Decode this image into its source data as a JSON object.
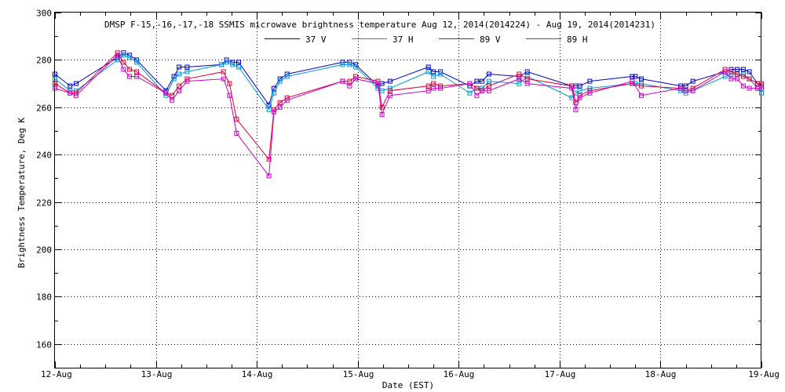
{
  "chart_data": {
    "type": "line",
    "title": "DMSP F-15,-16,-17,-18 SSMIS microwave brightness temperature Aug 12, 2014(2014224) - Aug 19, 2014(2014231)",
    "xlabel": "Date (EST)",
    "ylabel": "Brightness Temperature, Deg K",
    "xlim": [
      0,
      7
    ],
    "ylim": [
      150,
      300
    ],
    "x_ticks": [
      {
        "value": 0,
        "label": "12-Aug"
      },
      {
        "value": 1,
        "label": "13-Aug"
      },
      {
        "value": 2,
        "label": "14-Aug"
      },
      {
        "value": 3,
        "label": "15-Aug"
      },
      {
        "value": 4,
        "label": "16-Aug"
      },
      {
        "value": 5,
        "label": "17-Aug"
      },
      {
        "value": 6,
        "label": "18-Aug"
      },
      {
        "value": 7,
        "label": "19-Aug"
      }
    ],
    "y_ticks": [
      160,
      180,
      200,
      220,
      240,
      260,
      280,
      300
    ],
    "grid": true,
    "legend_position": "top",
    "series": [
      {
        "name": "37 V",
        "color": "#0000cc",
        "x": [
          0.0,
          0.15,
          0.21,
          0.62,
          0.68,
          0.74,
          0.81,
          1.1,
          1.18,
          1.23,
          1.31,
          1.65,
          1.7,
          1.76,
          1.82,
          2.12,
          2.17,
          2.23,
          2.3,
          2.85,
          2.92,
          2.98,
          3.2,
          3.24,
          3.32,
          3.7,
          3.75,
          3.82,
          4.11,
          4.18,
          4.23,
          4.3,
          4.6,
          4.68,
          5.12,
          5.16,
          5.2,
          5.3,
          5.72,
          5.75,
          5.81,
          6.2,
          6.25,
          6.32,
          6.64,
          6.7,
          6.76,
          6.82,
          6.88,
          6.96,
          7.0
        ],
        "values": [
          274,
          269,
          270,
          281,
          283,
          282,
          280,
          267,
          273,
          277,
          277,
          278,
          280,
          279,
          279,
          261,
          268,
          272,
          274,
          279,
          279,
          278,
          269,
          270,
          271,
          277,
          275,
          275,
          269,
          271,
          271,
          274,
          273,
          275,
          269,
          269,
          269,
          271,
          273,
          273,
          272,
          269,
          269,
          271,
          275,
          276,
          276,
          276,
          275,
          270,
          269
        ]
      },
      {
        "name": "37 H",
        "color": "#0099dd",
        "x": [
          0.0,
          0.15,
          0.21,
          0.62,
          0.68,
          0.74,
          0.81,
          1.1,
          1.18,
          1.23,
          1.31,
          1.65,
          1.7,
          1.76,
          1.82,
          2.12,
          2.17,
          2.23,
          2.3,
          2.85,
          2.92,
          2.98,
          3.2,
          3.24,
          3.32,
          3.7,
          3.75,
          3.82,
          4.11,
          4.18,
          4.23,
          4.3,
          4.6,
          4.68,
          5.12,
          5.16,
          5.2,
          5.3,
          5.72,
          5.75,
          5.81,
          6.2,
          6.25,
          6.32,
          6.64,
          6.7,
          6.76,
          6.82,
          6.88,
          6.96,
          7.0
        ],
        "values": [
          272,
          267,
          267,
          280,
          282,
          281,
          279,
          265,
          272,
          274,
          275,
          278,
          279,
          278,
          277,
          259,
          266,
          271,
          273,
          278,
          278,
          277,
          268,
          267,
          268,
          275,
          273,
          274,
          266,
          268,
          268,
          271,
          270,
          273,
          264,
          266,
          267,
          268,
          270,
          270,
          270,
          267,
          266,
          267,
          273,
          274,
          274,
          274,
          272,
          268,
          266
        ]
      },
      {
        "name": "89 V",
        "color": "#dd0033",
        "x": [
          0.0,
          0.15,
          0.21,
          0.62,
          0.68,
          0.74,
          0.81,
          1.1,
          1.16,
          1.23,
          1.31,
          1.67,
          1.73,
          1.8,
          2.12,
          2.17,
          2.23,
          2.3,
          2.85,
          2.92,
          2.98,
          3.2,
          3.24,
          3.32,
          3.7,
          3.75,
          3.82,
          4.11,
          4.18,
          4.23,
          4.3,
          4.6,
          4.68,
          5.12,
          5.16,
          5.2,
          5.3,
          5.72,
          5.81,
          6.2,
          6.25,
          6.32,
          6.64,
          6.7,
          6.76,
          6.82,
          6.88,
          6.96,
          7.0
        ],
        "values": [
          270,
          266,
          266,
          283,
          279,
          276,
          275,
          266,
          265,
          269,
          272,
          275,
          270,
          255,
          238,
          259,
          262,
          264,
          271,
          271,
          273,
          271,
          260,
          267,
          269,
          270,
          269,
          270,
          268,
          267,
          269,
          274,
          272,
          269,
          262,
          265,
          267,
          270,
          269,
          268,
          267,
          268,
          276,
          275,
          274,
          273,
          272,
          270,
          270
        ]
      },
      {
        "name": "89 H",
        "color": "#cc00cc",
        "x": [
          0.0,
          0.15,
          0.21,
          0.62,
          0.68,
          0.74,
          0.81,
          1.1,
          1.16,
          1.23,
          1.31,
          1.67,
          1.73,
          1.8,
          2.12,
          2.17,
          2.23,
          2.3,
          2.85,
          2.92,
          2.98,
          3.2,
          3.24,
          3.32,
          3.7,
          3.75,
          3.82,
          4.11,
          4.18,
          4.23,
          4.3,
          4.6,
          4.68,
          5.12,
          5.16,
          5.2,
          5.3,
          5.72,
          5.81,
          6.2,
          6.25,
          6.32,
          6.64,
          6.7,
          6.76,
          6.82,
          6.88,
          6.96,
          7.0
        ],
        "values": [
          268,
          266,
          265,
          282,
          276,
          273,
          273,
          266,
          263,
          267,
          271,
          272,
          265,
          249,
          231,
          258,
          260,
          263,
          271,
          269,
          272,
          270,
          257,
          265,
          267,
          268,
          268,
          270,
          265,
          267,
          267,
          272,
          270,
          268,
          259,
          264,
          266,
          271,
          265,
          268,
          267,
          267,
          275,
          272,
          272,
          269,
          268,
          268,
          268
        ]
      }
    ]
  }
}
